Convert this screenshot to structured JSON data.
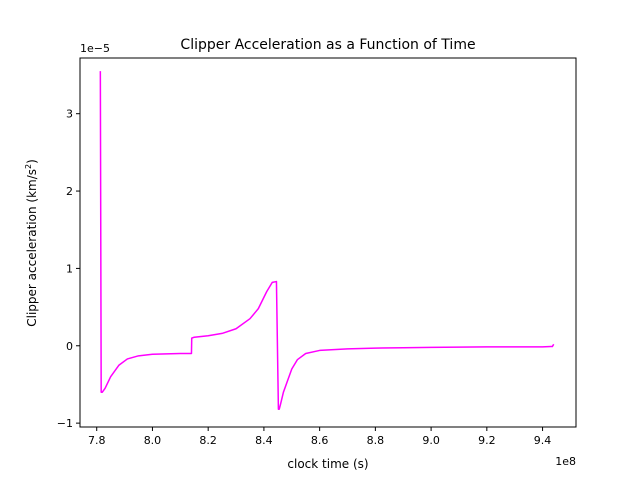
{
  "chart_data": {
    "type": "line",
    "title": "Clipper Acceleration as a Function of Time",
    "xlabel": "clock time (s)",
    "ylabel_main": "Clipper acceleration (km/s",
    "ylabel_sup": "2",
    "ylabel_close": ")",
    "x_offset_label": "1e8",
    "y_offset_label": "1e−5",
    "xlim": [
      7.74,
      9.52
    ],
    "ylim": [
      -1.05,
      3.72
    ],
    "x_ticks": [
      {
        "value": 7.8,
        "label": "7.8"
      },
      {
        "value": 8.0,
        "label": "8.0"
      },
      {
        "value": 8.2,
        "label": "8.2"
      },
      {
        "value": 8.4,
        "label": "8.4"
      },
      {
        "value": 8.6,
        "label": "8.6"
      },
      {
        "value": 8.8,
        "label": "8.8"
      },
      {
        "value": 9.0,
        "label": "9.0"
      },
      {
        "value": 9.2,
        "label": "9.2"
      },
      {
        "value": 9.4,
        "label": "9.4"
      }
    ],
    "y_ticks": [
      {
        "value": -1,
        "label": "−1"
      },
      {
        "value": 0,
        "label": "0"
      },
      {
        "value": 1,
        "label": "1"
      },
      {
        "value": 2,
        "label": "2"
      },
      {
        "value": 3,
        "label": "3"
      }
    ],
    "grid": false,
    "series": [
      {
        "color": "#ff00ff",
        "x": [
          7.813,
          7.816,
          7.82,
          7.83,
          7.85,
          7.88,
          7.91,
          7.95,
          8.0,
          8.05,
          8.1,
          8.14,
          8.141,
          8.15,
          8.2,
          8.25,
          8.3,
          8.35,
          8.38,
          8.41,
          8.43,
          8.445,
          8.452,
          8.455,
          8.46,
          8.47,
          8.48,
          8.5,
          8.52,
          8.55,
          8.6,
          8.7,
          8.8,
          8.9,
          9.0,
          9.2,
          9.4,
          9.43,
          9.435,
          9.44
        ],
        "y": [
          3.55,
          -0.6,
          -0.6,
          -0.55,
          -0.4,
          -0.25,
          -0.17,
          -0.13,
          -0.11,
          -0.105,
          -0.1,
          -0.1,
          0.1,
          0.11,
          0.13,
          0.16,
          0.22,
          0.35,
          0.48,
          0.7,
          0.82,
          0.83,
          -0.82,
          -0.82,
          -0.75,
          -0.6,
          -0.5,
          -0.3,
          -0.18,
          -0.1,
          -0.06,
          -0.04,
          -0.03,
          -0.025,
          -0.02,
          -0.015,
          -0.015,
          -0.01,
          -0.01,
          0.02
        ]
      }
    ]
  }
}
